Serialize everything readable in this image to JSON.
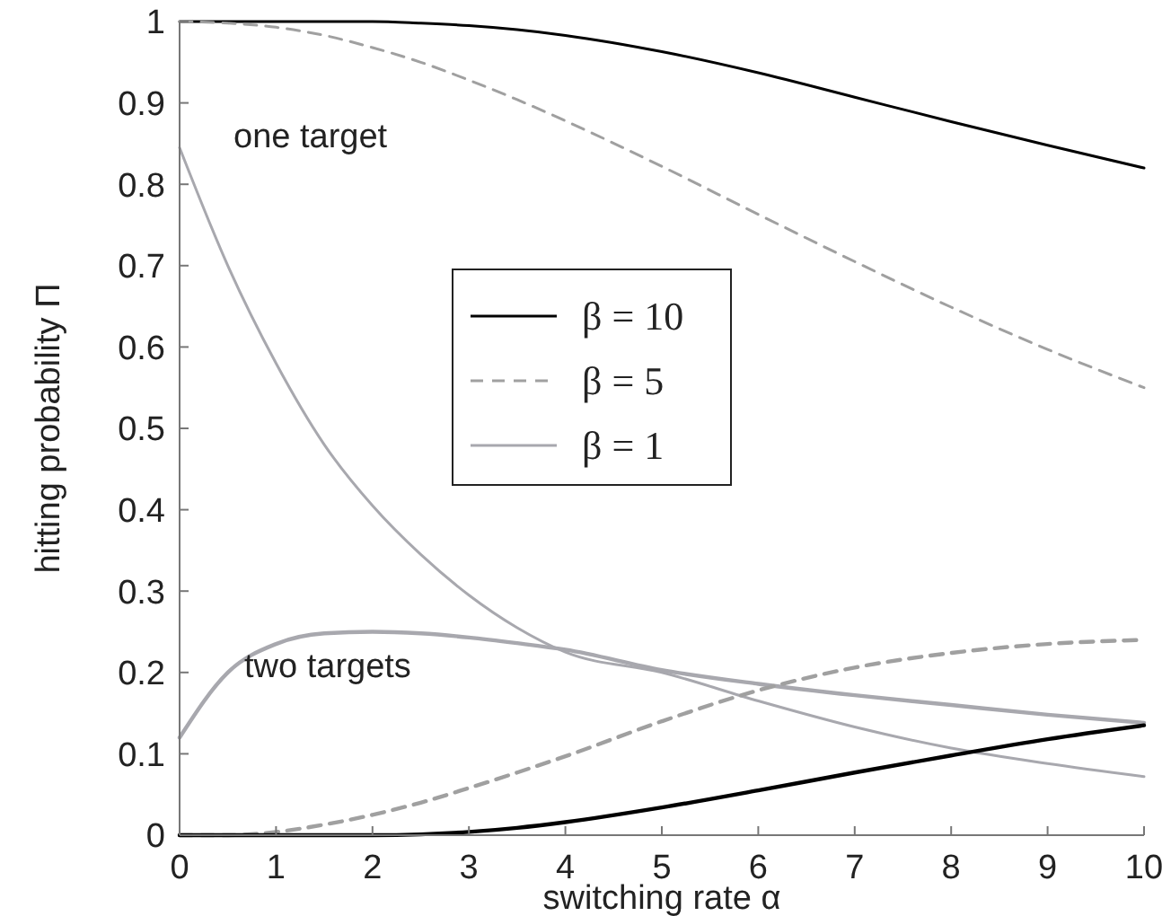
{
  "chart_data": {
    "type": "line",
    "xlabel": "switching rate α",
    "ylabel": "hitting probability Π",
    "x": [
      0,
      0.5,
      1,
      1.5,
      2,
      2.5,
      3,
      3.5,
      4,
      5,
      6,
      7,
      8,
      9,
      10
    ],
    "series": [
      {
        "name": "β = 10",
        "color": "#000000",
        "line_style": "solid",
        "values": [
          1,
          1,
          1,
          1,
          1,
          0.998,
          0.995,
          0.99,
          0.983,
          0.963,
          0.937,
          0.907,
          0.877,
          0.848,
          0.82
        ]
      },
      {
        "name": "β = 5",
        "color": "#a0a0a0",
        "line_style": "dashed",
        "values": [
          1,
          0.998,
          0.993,
          0.983,
          0.968,
          0.95,
          0.928,
          0.904,
          0.878,
          0.822,
          0.763,
          0.705,
          0.649,
          0.597,
          0.55
        ]
      },
      {
        "name": "β = 1",
        "color": "#a8a8ae",
        "line_style": "solid",
        "values": [
          0.845,
          0.7,
          0.58,
          0.48,
          0.405,
          0.345,
          0.295,
          0.255,
          0.225,
          0.2,
          0.165,
          0.133,
          0.107,
          0.088,
          0.072
        ]
      },
      {
        "color": "#a8a8ae",
        "line_style": "solid",
        "values": [
          0.12,
          0.2,
          0.235,
          0.248,
          0.25,
          0.248,
          0.243,
          0.236,
          0.228,
          0.203,
          0.186,
          0.172,
          0.16,
          0.148,
          0.138
        ]
      },
      {
        "color": "#a0a0a0",
        "line_style": "dashed",
        "values": [
          0,
          0,
          0.004,
          0.013,
          0.025,
          0.04,
          0.058,
          0.077,
          0.097,
          0.14,
          0.178,
          0.206,
          0.224,
          0.235,
          0.24
        ]
      },
      {
        "color": "#000000",
        "line_style": "solid",
        "values": [
          0,
          0,
          0,
          0,
          0,
          0.001,
          0.004,
          0.009,
          0.016,
          0.034,
          0.055,
          0.077,
          0.098,
          0.118,
          0.135
        ]
      }
    ],
    "xlim": [
      0,
      10
    ],
    "xticks": [
      0,
      1,
      2,
      3,
      4,
      5,
      6,
      7,
      8,
      9,
      10
    ],
    "ylim": [
      0,
      1
    ],
    "yticks": [
      0,
      0.1,
      0.2,
      0.3,
      0.4,
      0.5,
      0.6,
      0.7,
      0.8,
      0.9,
      1
    ],
    "legend": "center",
    "grid": false,
    "annotations": [
      "one target",
      "two targets"
    ]
  }
}
